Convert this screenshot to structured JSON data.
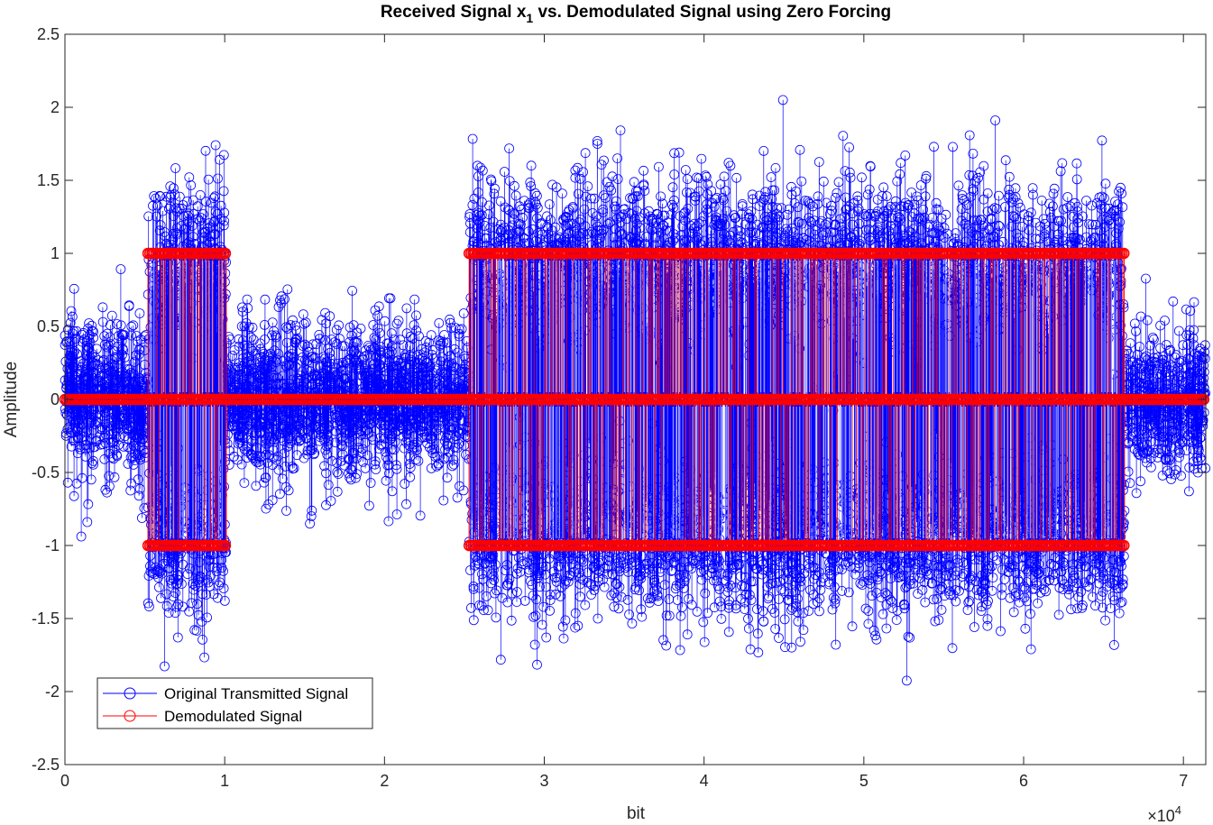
{
  "chart_data": {
    "type": "stem",
    "title": "Received Signal x",
    "title_sub": "1",
    "title_rest": " vs. Demodulated Signal using Zero Forcing",
    "xlabel": "bit",
    "ylabel": "Amplitude",
    "x_exponent_base": "×10",
    "x_exponent_power": "4",
    "xlim": [
      0,
      71400
    ],
    "ylim": [
      -2.5,
      2.5
    ],
    "x_ticks": [
      0,
      10000,
      20000,
      30000,
      40000,
      50000,
      60000,
      70000
    ],
    "x_tick_labels": [
      "0",
      "1",
      "2",
      "3",
      "4",
      "5",
      "6",
      "7"
    ],
    "y_ticks": [
      -2.5,
      -2,
      -1.5,
      -1,
      -0.5,
      0,
      0.5,
      1,
      1.5,
      2,
      2.5
    ],
    "y_tick_labels": [
      "-2.5",
      "-2",
      "-1.5",
      "-1",
      "-0.5",
      "0",
      "0.5",
      "1",
      "1.5",
      "2",
      "2.5"
    ],
    "grid": false,
    "legend_position": "bottom-left",
    "series": [
      {
        "name": "Original Transmitted Signal",
        "color": "#0000ff",
        "marker": "circle",
        "active_segments": [
          [
            5200,
            10100
          ],
          [
            25300,
            66300
          ]
        ],
        "active_amplitude_range": [
          -2.1,
          2.05
        ],
        "idle_amplitude_range": [
          -1.0,
          1.05
        ]
      },
      {
        "name": "Demodulated Signal",
        "color": "#ff0000",
        "marker": "circle",
        "levels": [
          -1,
          0,
          1
        ],
        "active_segments": [
          [
            5200,
            10100
          ],
          [
            25300,
            66300
          ]
        ]
      }
    ]
  }
}
